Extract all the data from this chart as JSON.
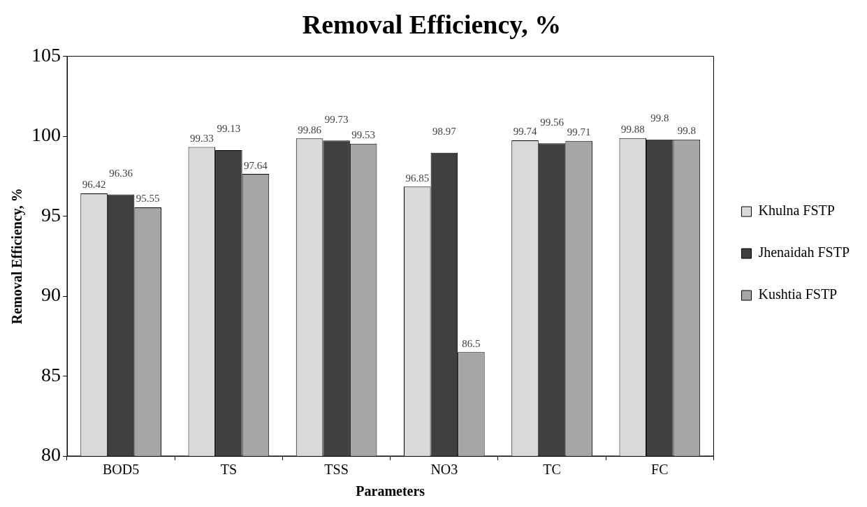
{
  "chart_data": {
    "type": "bar",
    "title": "Removal Efficiency, %",
    "xlabel": "Parameters",
    "ylabel": "Removal Efficiency, %",
    "categories": [
      "BOD5",
      "TS",
      "TSS",
      "NO3",
      "TC",
      "FC"
    ],
    "series": [
      {
        "name": "Khulna FSTP",
        "color": "#d9d9d9",
        "values": [
          96.42,
          99.33,
          99.86,
          96.85,
          99.74,
          99.88
        ]
      },
      {
        "name": "Jhenaidah FSTP",
        "color": "#404040",
        "values": [
          96.36,
          99.13,
          99.73,
          98.97,
          99.56,
          99.8
        ]
      },
      {
        "name": "Kushtia FSTP",
        "color": "#a6a6a6",
        "values": [
          95.55,
          97.64,
          99.53,
          86.5,
          99.71,
          99.8
        ]
      }
    ],
    "ylim": [
      80,
      105
    ],
    "yticks": [
      80,
      85,
      90,
      95,
      100,
      105
    ],
    "grid": false,
    "legend": "right",
    "data_labels": true
  }
}
